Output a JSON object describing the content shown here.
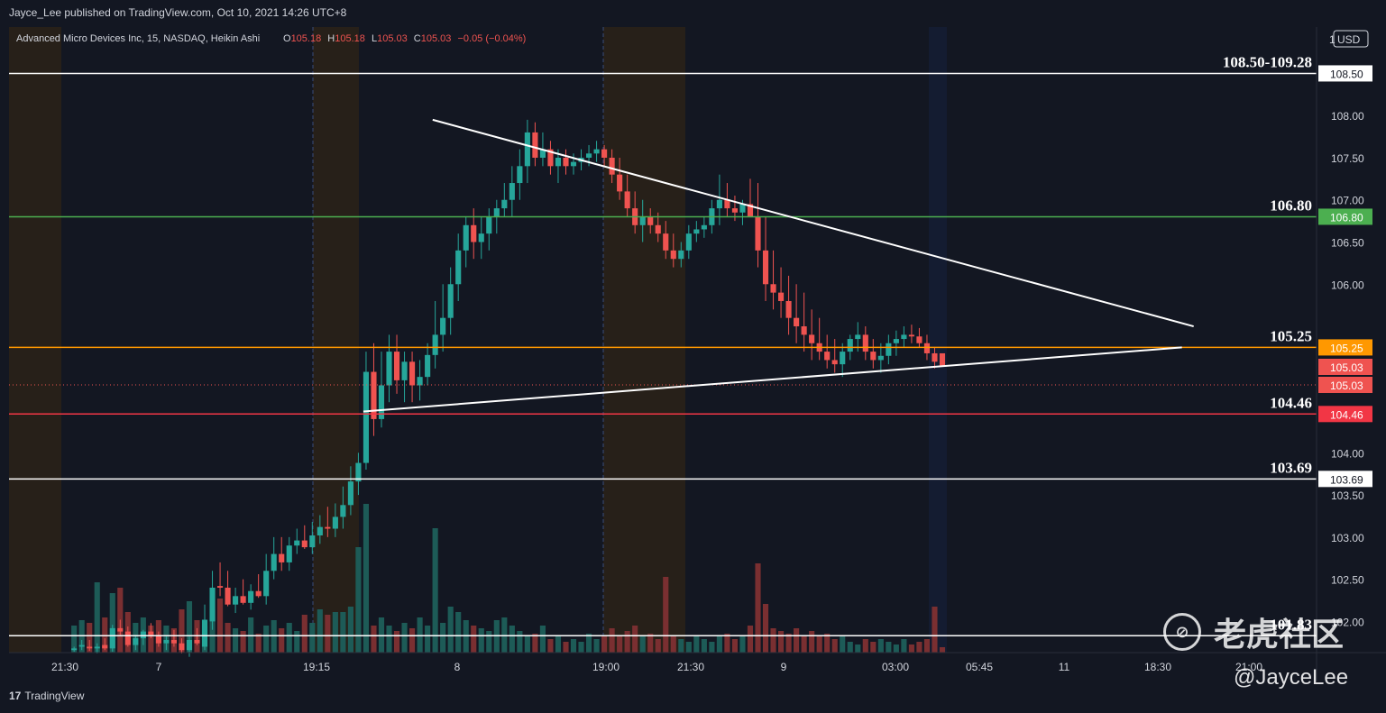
{
  "header": {
    "publisher": "Jayce_Lee published on TradingView.com, Oct 10, 2021 14:26 UTC+8"
  },
  "legend": {
    "symbol": "Advanced Micro Devices Inc, 15, NASDAQ, Heikin Ashi",
    "o_label": "O",
    "o_value": "105.18",
    "h_label": "H",
    "h_value": "105.18",
    "l_label": "L",
    "l_value": "105.03",
    "c_label": "C",
    "c_value": "105.03",
    "change": "−0.05 (−0.04%)",
    "currency": "USD",
    "currency_prefix": "1"
  },
  "footer": {
    "brand": "TradingView"
  },
  "watermark": {
    "text": "老虎社区",
    "author": "@JayceLee",
    "logo_icon": "tiger-logo-icon"
  },
  "colors": {
    "bg": "#131722",
    "up": "#26a69a",
    "down": "#ef5350",
    "vol_up": "#1d5b57",
    "vol_down": "#7a2f31",
    "green_line": "#4caf50",
    "orange_line": "#ff9800",
    "red_line": "#f23645",
    "white_line": "#ffffff",
    "session_brown": "#2a2118",
    "session_blue": "#151d33"
  },
  "chart_data": {
    "type": "candlestick",
    "y_ticks": [
      "108.00",
      "107.50",
      "107.00",
      "106.50",
      "106.00",
      "104.00",
      "103.50",
      "103.00",
      "102.50",
      "102.00"
    ],
    "ylim": [
      101.63,
      109.05
    ],
    "x_ticks": [
      "21:30",
      "7",
      "19:15",
      "8",
      "19:00",
      "21:30",
      "9",
      "03:00",
      "05:45",
      "11",
      "18:30",
      "21:00"
    ],
    "horizontal_levels": [
      {
        "value": 108.5,
        "label": "108.50-109.28",
        "badge": "108.50",
        "color": "#ffffff"
      },
      {
        "value": 106.8,
        "label": "106.80",
        "badge": "106.80",
        "color": "#4caf50"
      },
      {
        "value": 105.25,
        "label": "105.25",
        "badge": "105.25",
        "color": "#ff9800"
      },
      {
        "value": 104.46,
        "label": "104.46",
        "badge": "104.46",
        "color": "#f23645"
      },
      {
        "value": 103.69,
        "label": "103.69",
        "badge": "103.69",
        "color": "#ffffff"
      },
      {
        "value": 101.83,
        "label": "101.83",
        "badge": "",
        "color": "#ffffff"
      }
    ],
    "price_badges": [
      {
        "value": 105.03,
        "label": "105.03",
        "color": "#ef5350"
      },
      {
        "value": 105.03,
        "label": "105.03",
        "color": "#ef5350"
      }
    ],
    "trendlines": [
      {
        "from": [
          0.324,
          107.95
        ],
        "to": [
          0.906,
          105.5
        ],
        "name": "upper"
      },
      {
        "from": [
          0.271,
          104.49
        ],
        "to": [
          0.897,
          105.25
        ],
        "name": "lower"
      }
    ],
    "candles": [
      [
        101.66,
        101.66,
        101.66,
        101.66,
        0.0
      ],
      [
        101.66,
        101.66,
        101.66,
        101.66,
        0.0
      ],
      [
        101.66,
        101.66,
        101.66,
        101.66,
        0.0
      ],
      [
        101.66,
        101.66,
        101.66,
        101.66,
        0.0
      ],
      [
        101.66,
        101.66,
        101.66,
        101.66,
        0.0
      ],
      [
        101.66,
        101.66,
        101.66,
        101.66,
        0.0
      ],
      [
        101.66,
        101.66,
        101.66,
        101.66,
        0.0
      ],
      [
        101.66,
        101.66,
        101.66,
        101.66,
        0.0
      ],
      [
        101.66,
        101.7,
        101.64,
        101.68,
        1.0
      ],
      [
        101.7,
        101.78,
        101.66,
        101.72,
        1.2
      ],
      [
        101.7,
        101.78,
        101.65,
        101.68,
        1.1
      ],
      [
        101.68,
        101.74,
        101.62,
        101.7,
        2.6
      ],
      [
        101.72,
        101.8,
        101.66,
        101.68,
        1.3
      ],
      [
        101.68,
        101.96,
        101.64,
        101.92,
        2.2
      ],
      [
        101.92,
        102.02,
        101.84,
        101.88,
        2.4
      ],
      [
        101.88,
        101.94,
        101.7,
        101.72,
        1.5
      ],
      [
        101.72,
        101.84,
        101.66,
        101.8,
        1.1
      ],
      [
        101.8,
        101.9,
        101.72,
        101.88,
        1.3
      ],
      [
        101.88,
        101.98,
        101.8,
        101.84,
        1.0
      ],
      [
        101.84,
        101.88,
        101.7,
        101.74,
        1.2
      ],
      [
        101.74,
        101.82,
        101.66,
        101.78,
        1.0
      ],
      [
        101.78,
        101.9,
        101.7,
        101.74,
        0.9
      ],
      [
        101.74,
        101.8,
        101.62,
        101.66,
        1.6
      ],
      [
        101.66,
        101.82,
        101.58,
        101.78,
        1.9
      ],
      [
        101.78,
        101.92,
        101.72,
        101.74,
        1.2
      ],
      [
        101.7,
        102.2,
        101.66,
        102.02,
        1.0
      ],
      [
        102.0,
        102.6,
        101.9,
        102.4,
        1.6
      ],
      [
        102.42,
        102.7,
        102.3,
        102.4,
        2.0
      ],
      [
        102.4,
        102.6,
        102.18,
        102.2,
        1.1
      ],
      [
        102.2,
        102.4,
        102.1,
        102.3,
        0.9
      ],
      [
        102.3,
        102.5,
        102.2,
        102.22,
        0.8
      ],
      [
        102.22,
        102.44,
        102.14,
        102.36,
        1.3
      ],
      [
        102.36,
        102.56,
        102.28,
        102.3,
        0.7
      ],
      [
        102.3,
        102.8,
        102.2,
        102.6,
        1.0
      ],
      [
        102.6,
        103.0,
        102.5,
        102.8,
        1.2
      ],
      [
        102.8,
        103.0,
        102.6,
        102.7,
        0.9
      ],
      [
        102.7,
        103.0,
        102.6,
        102.9,
        1.1
      ],
      [
        102.9,
        103.1,
        102.8,
        102.96,
        0.8
      ],
      [
        102.96,
        103.14,
        102.86,
        102.88,
        1.4
      ],
      [
        102.88,
        103.18,
        102.8,
        103.02,
        1.1
      ],
      [
        103.02,
        103.26,
        102.92,
        103.12,
        1.6
      ],
      [
        103.12,
        103.36,
        103.0,
        103.1,
        1.4
      ],
      [
        103.1,
        103.4,
        103.0,
        103.24,
        1.5
      ],
      [
        103.24,
        103.6,
        103.1,
        103.38,
        1.5
      ],
      [
        103.38,
        103.84,
        103.26,
        103.66,
        1.7
      ],
      [
        103.66,
        104.0,
        103.5,
        103.88,
        3.9
      ],
      [
        103.88,
        105.2,
        103.8,
        104.96,
        5.5
      ],
      [
        104.96,
        105.3,
        104.2,
        104.4,
        1.0
      ],
      [
        104.4,
        105.2,
        104.3,
        104.8,
        1.3
      ],
      [
        104.8,
        105.4,
        104.6,
        105.2,
        1.0
      ],
      [
        105.2,
        105.4,
        104.7,
        104.86,
        0.8
      ],
      [
        104.86,
        105.2,
        104.6,
        105.08,
        1.1
      ],
      [
        105.08,
        105.2,
        104.6,
        104.8,
        0.9
      ],
      [
        104.8,
        105.1,
        104.62,
        104.9,
        1.3
      ],
      [
        104.9,
        105.3,
        104.8,
        105.16,
        1.0
      ],
      [
        105.16,
        105.8,
        105.0,
        105.4,
        4.6
      ],
      [
        105.4,
        106.0,
        105.2,
        105.6,
        1.1
      ],
      [
        105.6,
        106.2,
        105.4,
        106.0,
        1.7
      ],
      [
        106.0,
        106.6,
        105.8,
        106.4,
        1.5
      ],
      [
        106.4,
        106.8,
        106.2,
        106.7,
        1.2
      ],
      [
        106.7,
        106.9,
        106.3,
        106.5,
        1.0
      ],
      [
        106.5,
        106.8,
        106.3,
        106.6,
        0.9
      ],
      [
        106.6,
        106.9,
        106.4,
        106.8,
        0.8
      ],
      [
        106.8,
        107.0,
        106.6,
        106.9,
        1.2
      ],
      [
        106.9,
        107.2,
        106.8,
        107.0,
        1.3
      ],
      [
        107.0,
        107.4,
        106.8,
        107.2,
        1.0
      ],
      [
        107.2,
        107.6,
        107.0,
        107.4,
        0.8
      ],
      [
        107.4,
        107.95,
        107.2,
        107.8,
        0.6
      ],
      [
        107.8,
        107.92,
        107.4,
        107.5,
        0.7
      ],
      [
        107.5,
        107.8,
        107.4,
        107.6,
        1.0
      ],
      [
        107.6,
        107.7,
        107.3,
        107.4,
        0.5
      ],
      [
        107.4,
        107.6,
        107.2,
        107.5,
        0.6
      ],
      [
        107.5,
        107.6,
        107.3,
        107.4,
        0.4
      ],
      [
        107.4,
        107.55,
        107.3,
        107.45,
        0.5
      ],
      [
        107.45,
        107.6,
        107.35,
        107.5,
        0.4
      ],
      [
        107.5,
        107.65,
        107.4,
        107.55,
        0.7
      ],
      [
        107.55,
        107.7,
        107.45,
        107.6,
        0.5
      ],
      [
        107.6,
        107.65,
        107.4,
        107.5,
        0.6
      ],
      [
        107.5,
        107.6,
        107.2,
        107.3,
        0.9
      ],
      [
        107.3,
        107.5,
        107.0,
        107.1,
        0.6
      ],
      [
        107.1,
        107.3,
        106.8,
        106.9,
        0.8
      ],
      [
        106.9,
        107.1,
        106.6,
        106.7,
        1.0
      ],
      [
        106.7,
        107.0,
        106.5,
        106.8,
        0.6
      ],
      [
        106.8,
        106.9,
        106.6,
        106.7,
        0.7
      ],
      [
        106.7,
        106.85,
        106.5,
        106.6,
        0.5
      ],
      [
        106.6,
        106.75,
        106.3,
        106.4,
        2.8
      ],
      [
        106.4,
        106.6,
        106.2,
        106.3,
        0.6
      ],
      [
        106.3,
        106.5,
        106.2,
        106.4,
        0.5
      ],
      [
        106.4,
        106.7,
        106.3,
        106.6,
        0.4
      ],
      [
        106.6,
        106.75,
        106.5,
        106.65,
        0.6
      ],
      [
        106.65,
        106.8,
        106.55,
        106.7,
        0.5
      ],
      [
        106.7,
        107.0,
        106.6,
        106.9,
        0.4
      ],
      [
        106.9,
        107.3,
        106.7,
        107.0,
        0.6
      ],
      [
        107.0,
        107.2,
        106.8,
        106.9,
        0.7
      ],
      [
        106.9,
        107.05,
        106.75,
        106.85,
        0.5
      ],
      [
        106.85,
        107.0,
        106.7,
        106.95,
        0.6
      ],
      [
        106.95,
        107.25,
        106.8,
        106.8,
        1.0
      ],
      [
        106.8,
        107.2,
        106.2,
        106.4,
        3.3
      ],
      [
        106.4,
        106.8,
        105.8,
        106.0,
        1.8
      ],
      [
        106.0,
        106.4,
        105.7,
        105.9,
        0.9
      ],
      [
        105.9,
        106.2,
        105.6,
        105.8,
        0.8
      ],
      [
        105.8,
        106.1,
        105.4,
        105.6,
        0.7
      ],
      [
        105.6,
        106.0,
        105.3,
        105.5,
        0.9
      ],
      [
        105.5,
        105.9,
        105.2,
        105.4,
        0.6
      ],
      [
        105.4,
        105.7,
        105.1,
        105.3,
        0.8
      ],
      [
        105.3,
        105.6,
        105.1,
        105.2,
        0.6
      ],
      [
        105.2,
        105.4,
        105.0,
        105.1,
        0.7
      ],
      [
        105.1,
        105.35,
        104.95,
        105.05,
        0.5
      ],
      [
        105.05,
        105.3,
        104.9,
        105.2,
        0.6
      ],
      [
        105.2,
        105.4,
        105.1,
        105.35,
        0.4
      ],
      [
        105.35,
        105.55,
        105.2,
        105.4,
        0.3
      ],
      [
        105.4,
        105.5,
        105.1,
        105.2,
        0.5
      ],
      [
        105.2,
        105.35,
        105.0,
        105.1,
        0.4
      ],
      [
        105.1,
        105.3,
        104.95,
        105.15,
        0.5
      ],
      [
        105.15,
        105.4,
        105.05,
        105.3,
        0.4
      ],
      [
        105.3,
        105.45,
        105.15,
        105.35,
        0.3
      ],
      [
        105.35,
        105.5,
        105.25,
        105.4,
        0.5
      ],
      [
        105.4,
        105.52,
        105.3,
        105.38,
        0.3
      ],
      [
        105.38,
        105.48,
        105.25,
        105.3,
        0.4
      ],
      [
        105.3,
        105.4,
        105.1,
        105.18,
        0.5
      ],
      [
        105.18,
        105.25,
        105.0,
        105.08,
        1.7
      ],
      [
        105.18,
        105.18,
        105.03,
        105.03,
        0.2
      ]
    ]
  }
}
